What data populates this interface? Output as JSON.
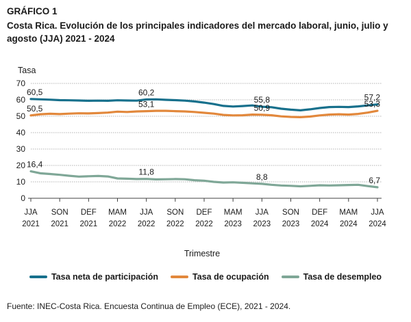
{
  "figure_label": "GRÁFICO 1",
  "source": "Fuente: INEC-Costa Rica. Encuesta Continua de Empleo (ECE), 2021 - 2024.",
  "colors": {
    "participation": "#17708c",
    "occupation": "#e2883c",
    "unemployment": "#7fa797",
    "axis": "#404040",
    "grid": "#9a9a9a"
  },
  "chart_data": {
    "type": "line",
    "title": "Costa Rica. Evolución de los principales indicadores del mercado laboral,  junio, julio y agosto (JJA) 2021 - 2024",
    "ylabel": "Tasa",
    "xlabel": "Trimestre",
    "ylim": [
      0,
      70
    ],
    "yticks": [
      "0",
      "10",
      "20",
      "30",
      "40",
      "50",
      "60",
      "70"
    ],
    "xtick_labels": [
      {
        "index": 0,
        "line1": "JJA",
        "line2": "2021"
      },
      {
        "index": 3,
        "line1": "SON",
        "line2": "2021"
      },
      {
        "index": 6,
        "line1": "DEF",
        "line2": "2021"
      },
      {
        "index": 9,
        "line1": "MAM",
        "line2": "2022"
      },
      {
        "index": 12,
        "line1": "JJA",
        "line2": "2022"
      },
      {
        "index": 15,
        "line1": "SON",
        "line2": "2022"
      },
      {
        "index": 18,
        "line1": "DEF",
        "line2": "2022"
      },
      {
        "index": 21,
        "line1": "MAM",
        "line2": "2023"
      },
      {
        "index": 24,
        "line1": "JJA",
        "line2": "2023"
      },
      {
        "index": 27,
        "line1": "SON",
        "line2": "2023"
      },
      {
        "index": 30,
        "line1": "DEF",
        "line2": "2024"
      },
      {
        "index": 33,
        "line1": "MAM",
        "line2": "2024"
      },
      {
        "index": 36,
        "line1": "JJA",
        "line2": "2024"
      }
    ],
    "series": [
      {
        "name": "Tasa neta de participación",
        "key": "participation",
        "values": [
          60.5,
          60.3,
          60.1,
          59.8,
          59.7,
          59.6,
          59.4,
          59.5,
          59.4,
          59.7,
          59.6,
          59.5,
          60.2,
          60.3,
          60.0,
          59.8,
          59.5,
          59.0,
          58.3,
          57.4,
          56.3,
          55.9,
          56.2,
          56.6,
          55.8,
          55.5,
          54.6,
          54.0,
          53.6,
          54.2,
          55.0,
          55.6,
          55.7,
          55.6,
          56.0,
          56.6,
          57.2
        ],
        "labels": [
          {
            "index": 0,
            "text": "60,5"
          },
          {
            "index": 12,
            "text": "60,2"
          },
          {
            "index": 24,
            "text": "55,8"
          },
          {
            "index": 36,
            "text": "57,2"
          }
        ]
      },
      {
        "name": "Tasa de ocupación",
        "key": "occupation",
        "values": [
          50.5,
          51.2,
          51.5,
          51.3,
          51.6,
          51.8,
          51.7,
          51.9,
          52.2,
          52.8,
          52.6,
          52.9,
          53.1,
          53.3,
          53.3,
          53.1,
          52.9,
          52.6,
          52.1,
          51.6,
          50.8,
          50.5,
          50.6,
          51.0,
          50.9,
          50.6,
          49.9,
          49.6,
          49.4,
          49.8,
          50.5,
          51.0,
          51.2,
          51.0,
          51.4,
          52.2,
          53.3
        ],
        "labels": [
          {
            "index": 0,
            "text": "50,5"
          },
          {
            "index": 12,
            "text": "53,1"
          },
          {
            "index": 24,
            "text": "50,9"
          },
          {
            "index": 36,
            "text": "53,3"
          }
        ]
      },
      {
        "name": "Tasa de desempleo",
        "key": "unemployment",
        "values": [
          16.4,
          15.2,
          14.8,
          14.3,
          13.7,
          13.2,
          13.4,
          13.6,
          13.3,
          12.1,
          11.9,
          11.7,
          11.8,
          11.5,
          11.6,
          11.7,
          11.6,
          11.0,
          10.7,
          10.0,
          9.6,
          9.7,
          9.4,
          9.1,
          8.8,
          8.2,
          7.8,
          7.6,
          7.3,
          7.6,
          7.9,
          7.8,
          7.9,
          8.1,
          8.2,
          7.4,
          6.7
        ],
        "labels": [
          {
            "index": 0,
            "text": "16,4"
          },
          {
            "index": 12,
            "text": "11,8"
          },
          {
            "index": 24,
            "text": "8,8"
          },
          {
            "index": 36,
            "text": "6,7"
          }
        ]
      }
    ],
    "legend": [
      {
        "key": "participation",
        "label": "Tasa neta de participación"
      },
      {
        "key": "occupation",
        "label": "Tasa de ocupación"
      },
      {
        "key": "unemployment",
        "label": "Tasa de desempleo"
      }
    ]
  }
}
